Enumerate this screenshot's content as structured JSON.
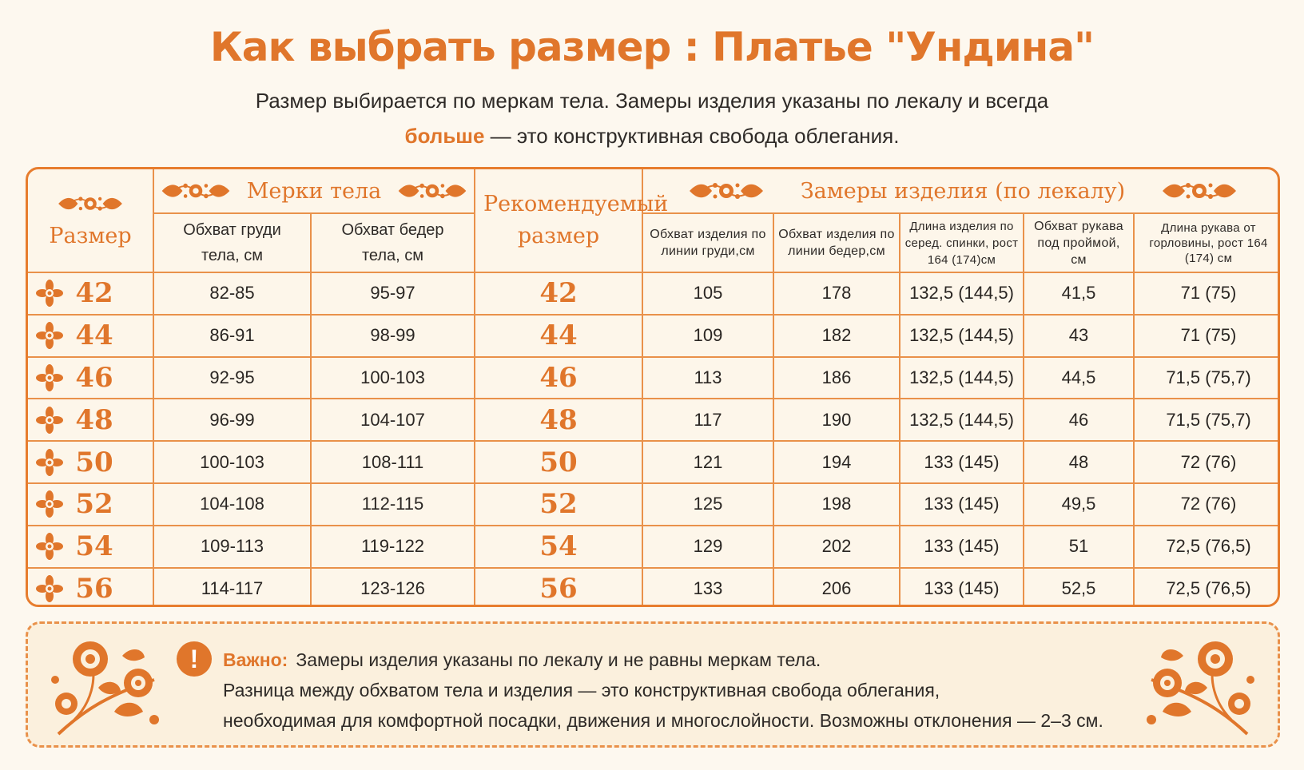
{
  "title": "Как выбрать размер :  Платье \"Ундина\"",
  "subtitle": {
    "line1": "Размер выбирается по меркам тела. Замеры изделия указаны по лекалу и всегда",
    "accent": "больше",
    "line2_rest": " — это конструктивная свобода облегания."
  },
  "table": {
    "headers": {
      "size": "Размер",
      "body_group": "Мерки тела",
      "recommended": "Рекомендуемый размер",
      "garment_group": "Замеры изделия (по лекалу)",
      "bust_body": "Обхват груди тела, см",
      "hips_body": "Обхват бедер тела, см",
      "g_bust": "Обхват изделия по линии груди,см",
      "g_hips": "Обхват изделия по линии бедер,см",
      "g_length": "Длина изделия по серед. спинки, рост 164 (174)см",
      "g_arm": "Обхват рукава под проймой, см",
      "g_sleeve": "Длина рукава от горловины, рост 164 (174) см"
    },
    "rows": [
      {
        "size": "42",
        "bust": "82-85",
        "hips": "95-97",
        "rec": "42",
        "g_bust": "105",
        "g_hips": "178",
        "length": "132,5 (144,5)",
        "arm": "41,5",
        "sleeve": "71 (75)"
      },
      {
        "size": "44",
        "bust": "86-91",
        "hips": "98-99",
        "rec": "44",
        "g_bust": "109",
        "g_hips": "182",
        "length": "132,5 (144,5)",
        "arm": "43",
        "sleeve": "71 (75)"
      },
      {
        "size": "46",
        "bust": "92-95",
        "hips": "100-103",
        "rec": "46",
        "g_bust": "113",
        "g_hips": "186",
        "length": "132,5 (144,5)",
        "arm": "44,5",
        "sleeve": "71,5 (75,7)"
      },
      {
        "size": "48",
        "bust": "96-99",
        "hips": "104-107",
        "rec": "48",
        "g_bust": "117",
        "g_hips": "190",
        "length": "132,5 (144,5)",
        "arm": "46",
        "sleeve": "71,5 (75,7)"
      },
      {
        "size": "50",
        "bust": "100-103",
        "hips": "108-111",
        "rec": "50",
        "g_bust": "121",
        "g_hips": "194",
        "length": "133 (145)",
        "arm": "48",
        "sleeve": "72 (76)"
      },
      {
        "size": "52",
        "bust": "104-108",
        "hips": "112-115",
        "rec": "52",
        "g_bust": "125",
        "g_hips": "198",
        "length": "133 (145)",
        "arm": "49,5",
        "sleeve": "72 (76)"
      },
      {
        "size": "54",
        "bust": "109-113",
        "hips": "119-122",
        "rec": "54",
        "g_bust": "129",
        "g_hips": "202",
        "length": "133 (145)",
        "arm": "51",
        "sleeve": "72,5 (76,5)"
      },
      {
        "size": "56",
        "bust": "114-117",
        "hips": "123-126",
        "rec": "56",
        "g_bust": "133",
        "g_hips": "206",
        "length": "133 (145)",
        "arm": "52,5",
        "sleeve": "72,5 (76,5)"
      }
    ]
  },
  "note": {
    "icon": "exclamation-icon",
    "label": "Важно:",
    "line1": "Замеры изделия указаны по лекалу и не равны меркам тела.",
    "line2": "Разница между обхватом тела и изделия — это конструктивная свобода облегания,",
    "line3": "необходимая для комфортной посадки, движения и многослойности. Возможны отклонения — 2–3 см."
  },
  "colors": {
    "accent": "#e0762b",
    "border": "#e9914a",
    "background": "#fdf8ef"
  }
}
